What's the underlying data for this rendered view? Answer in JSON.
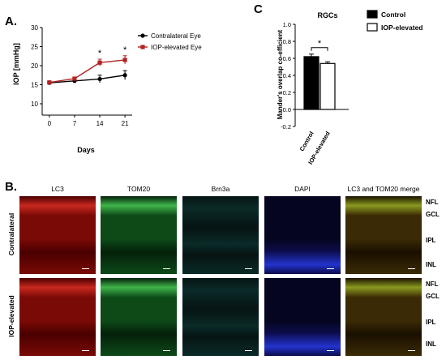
{
  "panels": {
    "a_letter": "A.",
    "b_letter": "B.",
    "c_letter": "C"
  },
  "chart_data": [
    {
      "type": "line",
      "id": "A",
      "title": "",
      "xlabel": "Days",
      "ylabel": "IOP [mmHg]",
      "x": [
        0,
        7,
        14,
        21
      ],
      "xticks": [
        "0",
        "7",
        "14",
        "21"
      ],
      "ylim": [
        10,
        30
      ],
      "yticks": [
        "10",
        "15",
        "20",
        "25",
        "30"
      ],
      "series": [
        {
          "name": "Contralateral Eye",
          "color": "#000000",
          "marker": "circle",
          "values": [
            15.5,
            16.0,
            16.5,
            17.5
          ],
          "errors": [
            0.3,
            0.4,
            1.0,
            1.2
          ]
        },
        {
          "name": "IOP-elevated Eye",
          "color": "#b22222",
          "marker": "square",
          "values": [
            15.6,
            16.6,
            20.8,
            21.5
          ],
          "errors": [
            0.3,
            0.4,
            0.9,
            1.1
          ]
        }
      ],
      "annotations": [
        {
          "x": 14,
          "text": "*"
        },
        {
          "x": 21,
          "text": "*"
        }
      ],
      "legend": "top-left",
      "grid": false
    },
    {
      "type": "bar",
      "id": "C",
      "title": "RGCs",
      "xlabel": "",
      "ylabel": "Mander's overlap co-efficient",
      "categories": [
        "Control",
        "IOP-elevated"
      ],
      "values": [
        0.62,
        0.54
      ],
      "errors": [
        0.03,
        0.02
      ],
      "colors": [
        "#000000",
        "#ffffff"
      ],
      "ylim": [
        -0.2,
        1.0
      ],
      "yticks": [
        "-0.2",
        "0.0",
        "0.2",
        "0.4",
        "0.6",
        "0.8",
        "1.0"
      ],
      "legend_entries": [
        "Control",
        "IOP-elevated"
      ],
      "legend": "top-right",
      "significance": "*",
      "grid": false
    }
  ],
  "micrographs": {
    "columns": [
      "LC3",
      "TOM20",
      "Brn3a",
      "DAPI",
      "LC3 and TOM20 merge"
    ],
    "rows": [
      "Contralateral",
      "IOP-elevated"
    ],
    "layers_top": [
      "NFL",
      "GCL",
      "IPL",
      "INL"
    ],
    "layers_bottom": [
      "NFL",
      "GCL",
      "IPL",
      "INL"
    ]
  }
}
